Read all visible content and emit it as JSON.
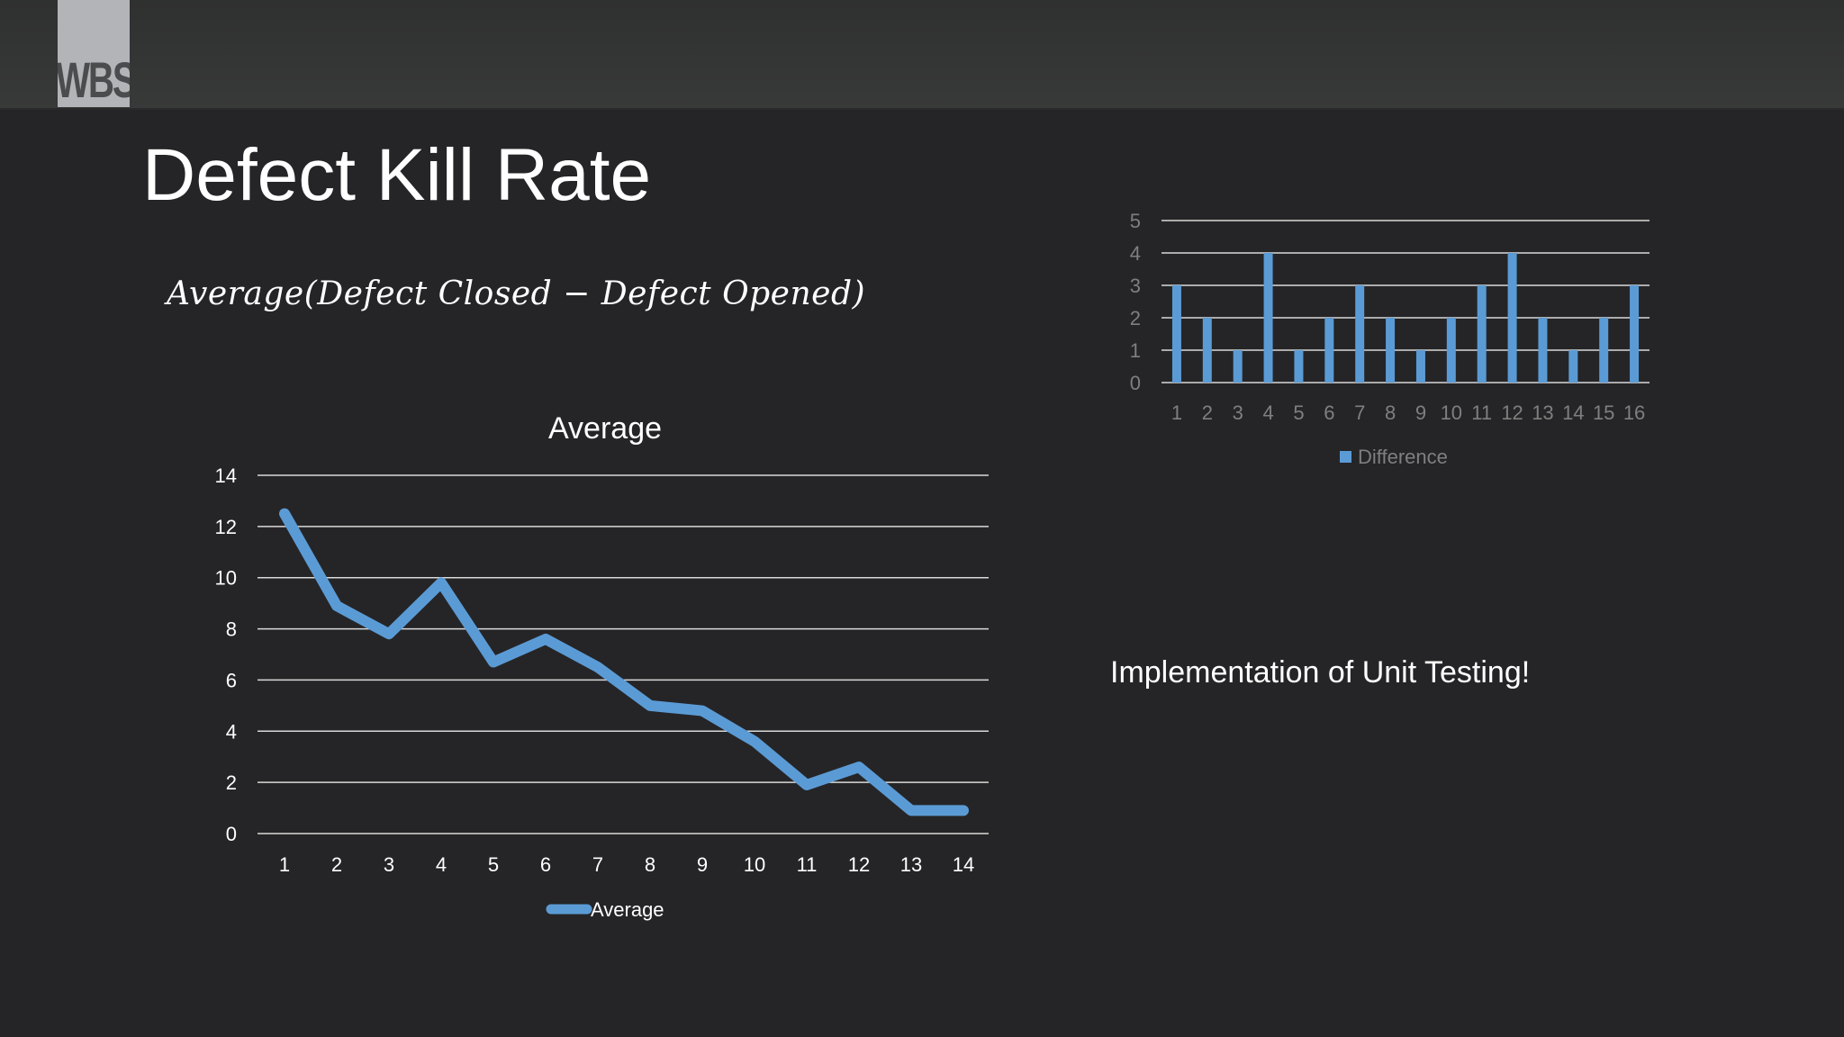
{
  "header": {
    "logo_text": "WBS"
  },
  "slide": {
    "title": "Defect Kill Rate",
    "formula": "Average(Defect Closed − Defect Opened)",
    "note": "Implementation of Unit Testing!"
  },
  "colors": {
    "background": "#252527",
    "topbar": "#353636",
    "series": "#5b9bd5",
    "gridline": "#d9d9d9",
    "axis_text_light": "#ffffff",
    "axis_text_dim": "#7f7f7f"
  },
  "chart_data": [
    {
      "type": "line",
      "title": "Average",
      "xlabel": "",
      "ylabel": "",
      "categories": [
        "1",
        "2",
        "3",
        "4",
        "5",
        "6",
        "7",
        "8",
        "9",
        "10",
        "11",
        "12",
        "13",
        "14"
      ],
      "series": [
        {
          "name": "Average",
          "values": [
            12.5,
            8.9,
            7.8,
            9.8,
            6.7,
            7.6,
            6.5,
            5.0,
            4.8,
            3.6,
            1.9,
            2.6,
            0.9,
            0.9
          ]
        }
      ],
      "yticks": [
        "0",
        "2",
        "4",
        "6",
        "8",
        "10",
        "12",
        "14"
      ],
      "ylim": [
        0,
        14
      ],
      "grid": true,
      "legend": {
        "position": "bottom",
        "entries": [
          "Average"
        ]
      }
    },
    {
      "type": "bar",
      "title": "",
      "xlabel": "",
      "ylabel": "",
      "categories": [
        "1",
        "2",
        "3",
        "4",
        "5",
        "6",
        "7",
        "8",
        "9",
        "10",
        "11",
        "12",
        "13",
        "14",
        "15",
        "16"
      ],
      "series": [
        {
          "name": "Difference",
          "values": [
            3,
            2,
            1,
            4,
            1,
            2,
            3,
            2,
            1,
            2,
            3,
            4,
            2,
            1,
            2,
            3
          ]
        }
      ],
      "yticks": [
        "0",
        "1",
        "2",
        "3",
        "4",
        "5"
      ],
      "ylim": [
        0,
        5
      ],
      "grid": true,
      "legend": {
        "position": "bottom",
        "entries": [
          "Difference"
        ]
      }
    }
  ]
}
